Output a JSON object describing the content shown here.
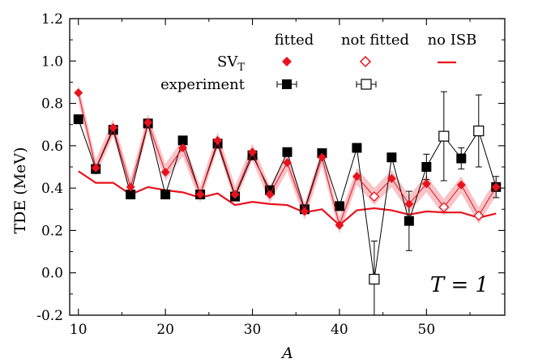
{
  "colors": {
    "red": "#e8121d",
    "band": "#f7b9bd",
    "black": "#000000"
  },
  "chart_data": {
    "type": "scatter",
    "xlabel": "A",
    "ylabel": "TDE (MeV)",
    "xlim": [
      9,
      59
    ],
    "ylim": [
      -0.2,
      1.2
    ],
    "x_ticks": [
      10,
      20,
      30,
      40,
      50
    ],
    "y_ticks": [
      -0.2,
      0.0,
      0.2,
      0.4,
      0.6,
      0.8,
      1.0,
      1.2
    ],
    "x_tick_labels": [
      "10",
      "20",
      "30",
      "40",
      "50"
    ],
    "y_tick_labels": [
      "-0.2",
      "0.0",
      "0.2",
      "0.4",
      "0.6",
      "0.8",
      "1.0",
      "1.2"
    ],
    "annotation": "T = 1",
    "legend": {
      "col_fitted": "fitted",
      "col_not_fitted": "not fitted",
      "col_no_isb": "no ISB",
      "row_sv": "SV_T",
      "row_sv_main": "SV",
      "row_sv_sub": "T",
      "row_experiment": "experiment"
    },
    "series": [
      {
        "name": "experiment",
        "marker": "square",
        "points": [
          {
            "x": 10,
            "y": 0.725,
            "fitted": true
          },
          {
            "x": 12,
            "y": 0.49,
            "fitted": true
          },
          {
            "x": 14,
            "y": 0.675,
            "fitted": true
          },
          {
            "x": 16,
            "y": 0.37,
            "fitted": true
          },
          {
            "x": 18,
            "y": 0.705,
            "fitted": true
          },
          {
            "x": 20,
            "y": 0.37,
            "fitted": true
          },
          {
            "x": 22,
            "y": 0.625,
            "fitted": true
          },
          {
            "x": 24,
            "y": 0.37,
            "fitted": true
          },
          {
            "x": 26,
            "y": 0.61,
            "fitted": true
          },
          {
            "x": 28,
            "y": 0.36,
            "fitted": true
          },
          {
            "x": 30,
            "y": 0.555,
            "fitted": true
          },
          {
            "x": 32,
            "y": 0.39,
            "fitted": true
          },
          {
            "x": 34,
            "y": 0.57,
            "fitted": true
          },
          {
            "x": 36,
            "y": 0.3,
            "fitted": true
          },
          {
            "x": 38,
            "y": 0.565,
            "fitted": true
          },
          {
            "x": 40,
            "y": 0.315,
            "fitted": true
          },
          {
            "x": 42,
            "y": 0.59,
            "fitted": true
          },
          {
            "x": 44,
            "y": -0.03,
            "fitted": false,
            "err": 0.18
          },
          {
            "x": 46,
            "y": 0.545,
            "fitted": true
          },
          {
            "x": 48,
            "y": 0.245,
            "fitted": true,
            "err": 0.14
          },
          {
            "x": 50,
            "y": 0.5,
            "fitted": true,
            "err": 0.06
          },
          {
            "x": 52,
            "y": 0.645,
            "fitted": false,
            "err": 0.21
          },
          {
            "x": 54,
            "y": 0.54,
            "fitted": true,
            "err": 0.05
          },
          {
            "x": 56,
            "y": 0.67,
            "fitted": false,
            "err": 0.17
          },
          {
            "x": 58,
            "y": 0.405,
            "fitted": true,
            "err": 0.05
          }
        ]
      },
      {
        "name": "SV_T",
        "marker": "diamond",
        "band": 0.04,
        "points": [
          {
            "x": 10,
            "y": 0.85,
            "fitted": true
          },
          {
            "x": 12,
            "y": 0.495,
            "fitted": true
          },
          {
            "x": 14,
            "y": 0.685,
            "fitted": true
          },
          {
            "x": 16,
            "y": 0.405,
            "fitted": true
          },
          {
            "x": 18,
            "y": 0.71,
            "fitted": true
          },
          {
            "x": 20,
            "y": 0.475,
            "fitted": true
          },
          {
            "x": 22,
            "y": 0.59,
            "fitted": true
          },
          {
            "x": 24,
            "y": 0.37,
            "fitted": true
          },
          {
            "x": 26,
            "y": 0.625,
            "fitted": true
          },
          {
            "x": 28,
            "y": 0.37,
            "fitted": true
          },
          {
            "x": 30,
            "y": 0.57,
            "fitted": true
          },
          {
            "x": 32,
            "y": 0.37,
            "fitted": true
          },
          {
            "x": 34,
            "y": 0.52,
            "fitted": true
          },
          {
            "x": 36,
            "y": 0.29,
            "fitted": true
          },
          {
            "x": 38,
            "y": 0.545,
            "fitted": true
          },
          {
            "x": 40,
            "y": 0.225,
            "fitted": true
          },
          {
            "x": 42,
            "y": 0.455,
            "fitted": true
          },
          {
            "x": 44,
            "y": 0.36,
            "fitted": false
          },
          {
            "x": 46,
            "y": 0.445,
            "fitted": true
          },
          {
            "x": 48,
            "y": 0.325,
            "fitted": true
          },
          {
            "x": 50,
            "y": 0.42,
            "fitted": true
          },
          {
            "x": 52,
            "y": 0.31,
            "fitted": false
          },
          {
            "x": 54,
            "y": 0.415,
            "fitted": true
          },
          {
            "x": 56,
            "y": 0.27,
            "fitted": false
          },
          {
            "x": 58,
            "y": 0.405,
            "fitted": true
          }
        ]
      },
      {
        "name": "no ISB",
        "marker": "line",
        "points": [
          {
            "x": 10,
            "y": 0.48
          },
          {
            "x": 12,
            "y": 0.425
          },
          {
            "x": 14,
            "y": 0.425
          },
          {
            "x": 16,
            "y": 0.37
          },
          {
            "x": 18,
            "y": 0.405
          },
          {
            "x": 20,
            "y": 0.39
          },
          {
            "x": 22,
            "y": 0.38
          },
          {
            "x": 24,
            "y": 0.355
          },
          {
            "x": 26,
            "y": 0.375
          },
          {
            "x": 28,
            "y": 0.32
          },
          {
            "x": 30,
            "y": 0.335
          },
          {
            "x": 32,
            "y": 0.325
          },
          {
            "x": 34,
            "y": 0.32
          },
          {
            "x": 36,
            "y": 0.285
          },
          {
            "x": 38,
            "y": 0.3
          },
          {
            "x": 40,
            "y": 0.225
          },
          {
            "x": 42,
            "y": 0.295
          },
          {
            "x": 44,
            "y": 0.305
          },
          {
            "x": 46,
            "y": 0.295
          },
          {
            "x": 48,
            "y": 0.275
          },
          {
            "x": 50,
            "y": 0.29
          },
          {
            "x": 52,
            "y": 0.285
          },
          {
            "x": 54,
            "y": 0.285
          },
          {
            "x": 56,
            "y": 0.26
          },
          {
            "x": 58,
            "y": 0.28
          }
        ]
      }
    ]
  }
}
